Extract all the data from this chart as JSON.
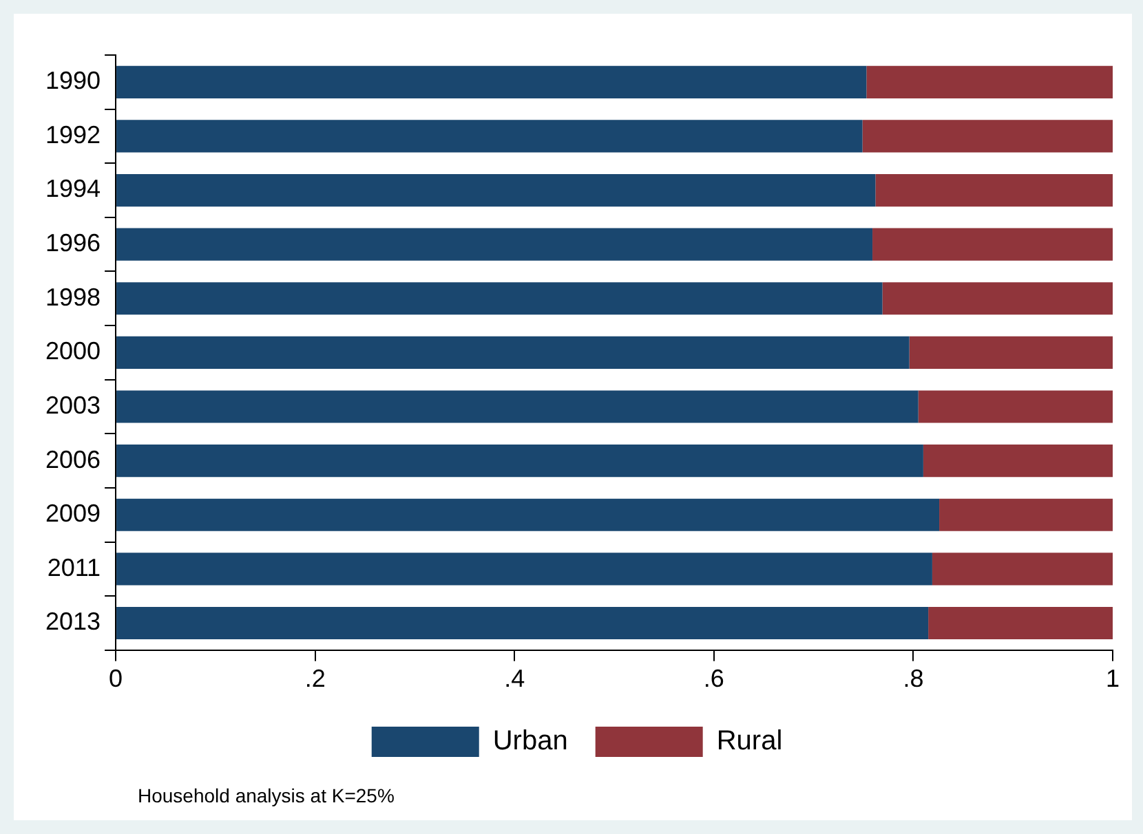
{
  "chart_data": {
    "type": "bar",
    "orientation": "horizontal",
    "stacked": true,
    "categories": [
      "1990",
      "1992",
      "1994",
      "1996",
      "1998",
      "2000",
      "2003",
      "2006",
      "2009",
      "2011",
      "2013"
    ],
    "series": [
      {
        "name": "Urban",
        "color": "#1a476f",
        "values": [
          0.753,
          0.749,
          0.762,
          0.759,
          0.769,
          0.796,
          0.805,
          0.81,
          0.826,
          0.819,
          0.815
        ]
      },
      {
        "name": "Rural",
        "color": "#90353b",
        "values": [
          0.247,
          0.251,
          0.238,
          0.241,
          0.231,
          0.204,
          0.195,
          0.19,
          0.174,
          0.181,
          0.185
        ]
      }
    ],
    "xlim": [
      0,
      1
    ],
    "xticks": [
      0,
      {
        "value": 0.2,
        "label": ".2"
      },
      {
        "value": 0.4,
        "label": ".4"
      },
      {
        "value": 0.6,
        "label": ".6"
      },
      {
        "value": 0.8,
        "label": ".8"
      },
      1
    ],
    "grid": false,
    "legend": "bottom",
    "annotations": [
      "Household analysis at K=25%"
    ]
  }
}
